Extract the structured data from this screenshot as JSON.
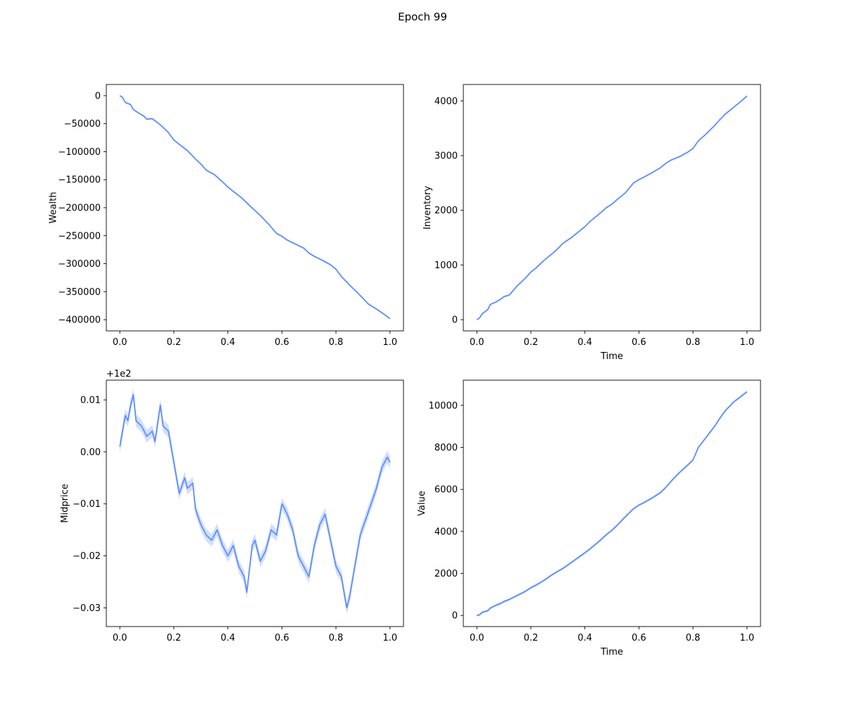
{
  "figure": {
    "title": "Epoch 99"
  },
  "colors": {
    "line": "#5e8ffb",
    "band": "#aec6f8",
    "axis": "#000000"
  },
  "chart_data": [
    {
      "type": "line",
      "id": "wealth",
      "xlabel": "",
      "ylabel": "Wealth",
      "offset_label": "",
      "xlim": [
        -0.05,
        1.05
      ],
      "ylim": [
        -420000,
        20000
      ],
      "xticks": [
        0.0,
        0.2,
        0.4,
        0.6,
        0.8,
        1.0
      ],
      "xtick_labels": [
        "0.0",
        "0.2",
        "0.4",
        "0.6",
        "0.8",
        "1.0"
      ],
      "yticks": [
        0,
        -50000,
        -100000,
        -150000,
        -200000,
        -250000,
        -300000,
        -350000,
        -400000
      ],
      "ytick_labels": [
        "0",
        "−50000",
        "−100000",
        "−150000",
        "−200000",
        "−250000",
        "−300000",
        "−350000",
        "−400000"
      ],
      "x": [
        0.0,
        0.01,
        0.02,
        0.04,
        0.05,
        0.07,
        0.09,
        0.1,
        0.12,
        0.15,
        0.18,
        0.2,
        0.22,
        0.25,
        0.28,
        0.3,
        0.32,
        0.35,
        0.38,
        0.4,
        0.42,
        0.45,
        0.48,
        0.5,
        0.52,
        0.55,
        0.58,
        0.6,
        0.62,
        0.65,
        0.68,
        0.7,
        0.72,
        0.75,
        0.78,
        0.8,
        0.82,
        0.85,
        0.88,
        0.9,
        0.92,
        0.95,
        0.98,
        1.0
      ],
      "y": [
        0,
        -3000,
        -12000,
        -16000,
        -25000,
        -31000,
        -37000,
        -42000,
        -41000,
        -52000,
        -66000,
        -79000,
        -87000,
        -98000,
        -113000,
        -122000,
        -133000,
        -141000,
        -154000,
        -163000,
        -171000,
        -182000,
        -196000,
        -205000,
        -214000,
        -229000,
        -246000,
        -251000,
        -258000,
        -265000,
        -272000,
        -281000,
        -287000,
        -294000,
        -302000,
        -310000,
        -323000,
        -338000,
        -352000,
        -362000,
        -372000,
        -381000,
        -391000,
        -398000
      ],
      "band_width": 1500
    },
    {
      "type": "line",
      "id": "inventory",
      "xlabel": "Time",
      "ylabel": "Inventory",
      "offset_label": "",
      "xlim": [
        -0.05,
        1.05
      ],
      "ylim": [
        -205,
        4300
      ],
      "xticks": [
        0.0,
        0.2,
        0.4,
        0.6,
        0.8,
        1.0
      ],
      "xtick_labels": [
        "0.0",
        "0.2",
        "0.4",
        "0.6",
        "0.8",
        "1.0"
      ],
      "yticks": [
        0,
        1000,
        2000,
        3000,
        4000
      ],
      "ytick_labels": [
        "0",
        "1000",
        "2000",
        "3000",
        "4000"
      ],
      "x": [
        0.0,
        0.01,
        0.02,
        0.04,
        0.05,
        0.07,
        0.09,
        0.1,
        0.12,
        0.15,
        0.18,
        0.2,
        0.22,
        0.25,
        0.28,
        0.3,
        0.32,
        0.35,
        0.38,
        0.4,
        0.42,
        0.45,
        0.48,
        0.5,
        0.52,
        0.55,
        0.58,
        0.6,
        0.62,
        0.65,
        0.68,
        0.7,
        0.72,
        0.75,
        0.78,
        0.8,
        0.82,
        0.85,
        0.88,
        0.9,
        0.92,
        0.95,
        0.98,
        1.0
      ],
      "y": [
        0,
        30,
        110,
        180,
        280,
        320,
        380,
        420,
        450,
        620,
        760,
        870,
        950,
        1090,
        1210,
        1300,
        1400,
        1500,
        1620,
        1700,
        1800,
        1920,
        2050,
        2110,
        2200,
        2320,
        2500,
        2560,
        2610,
        2690,
        2780,
        2860,
        2920,
        2980,
        3060,
        3130,
        3270,
        3400,
        3550,
        3660,
        3760,
        3880,
        4000,
        4090
      ],
      "band_width": 15
    },
    {
      "type": "line",
      "id": "midprice",
      "xlabel": "",
      "ylabel": "Midprice",
      "offset_label": "+1e2",
      "xlim": [
        -0.05,
        1.05
      ],
      "ylim": [
        -0.0336,
        0.0138
      ],
      "xticks": [
        0.0,
        0.2,
        0.4,
        0.6,
        0.8,
        1.0
      ],
      "xtick_labels": [
        "0.0",
        "0.2",
        "0.4",
        "0.6",
        "0.8",
        "1.0"
      ],
      "yticks": [
        0.01,
        0.0,
        -0.01,
        -0.02,
        -0.03
      ],
      "ytick_labels": [
        "0.01",
        "0.00",
        "−0.01",
        "−0.02",
        "−0.03"
      ],
      "x": [
        0.0,
        0.01,
        0.02,
        0.03,
        0.04,
        0.05,
        0.06,
        0.08,
        0.1,
        0.12,
        0.13,
        0.15,
        0.16,
        0.18,
        0.2,
        0.22,
        0.24,
        0.25,
        0.27,
        0.28,
        0.3,
        0.32,
        0.34,
        0.36,
        0.38,
        0.4,
        0.42,
        0.44,
        0.46,
        0.47,
        0.49,
        0.5,
        0.52,
        0.54,
        0.56,
        0.58,
        0.6,
        0.62,
        0.64,
        0.66,
        0.68,
        0.7,
        0.72,
        0.74,
        0.76,
        0.78,
        0.8,
        0.82,
        0.84,
        0.85,
        0.87,
        0.89,
        0.91,
        0.93,
        0.95,
        0.97,
        0.99,
        1.0
      ],
      "y": [
        0.001,
        0.004,
        0.007,
        0.006,
        0.009,
        0.011,
        0.006,
        0.005,
        0.003,
        0.004,
        0.002,
        0.009,
        0.005,
        0.004,
        -0.002,
        -0.008,
        -0.005,
        -0.007,
        -0.006,
        -0.011,
        -0.014,
        -0.016,
        -0.017,
        -0.015,
        -0.018,
        -0.02,
        -0.018,
        -0.022,
        -0.024,
        -0.027,
        -0.018,
        -0.017,
        -0.021,
        -0.019,
        -0.015,
        -0.016,
        -0.01,
        -0.012,
        -0.015,
        -0.02,
        -0.022,
        -0.024,
        -0.018,
        -0.014,
        -0.012,
        -0.017,
        -0.022,
        -0.024,
        -0.03,
        -0.028,
        -0.022,
        -0.016,
        -0.013,
        -0.01,
        -0.007,
        -0.003,
        -0.001,
        -0.002
      ],
      "band_width": 0.0012
    },
    {
      "type": "line",
      "id": "value",
      "xlabel": "Time",
      "ylabel": "Value",
      "offset_label": "",
      "xlim": [
        -0.05,
        1.05
      ],
      "ylim": [
        -530,
        11200
      ],
      "xticks": [
        0.0,
        0.2,
        0.4,
        0.6,
        0.8,
        1.0
      ],
      "xtick_labels": [
        "0.0",
        "0.2",
        "0.4",
        "0.6",
        "0.8",
        "1.0"
      ],
      "yticks": [
        0,
        2000,
        4000,
        6000,
        8000,
        10000
      ],
      "ytick_labels": [
        "0",
        "2000",
        "4000",
        "6000",
        "8000",
        "10000"
      ],
      "x": [
        0.0,
        0.01,
        0.02,
        0.04,
        0.05,
        0.07,
        0.09,
        0.1,
        0.12,
        0.15,
        0.18,
        0.2,
        0.22,
        0.25,
        0.28,
        0.3,
        0.32,
        0.35,
        0.38,
        0.4,
        0.42,
        0.45,
        0.48,
        0.5,
        0.52,
        0.55,
        0.58,
        0.6,
        0.62,
        0.65,
        0.68,
        0.7,
        0.72,
        0.75,
        0.78,
        0.8,
        0.82,
        0.85,
        0.88,
        0.9,
        0.92,
        0.95,
        0.98,
        1.0
      ],
      "y": [
        0,
        30,
        150,
        220,
        350,
        480,
        580,
        660,
        760,
        950,
        1150,
        1320,
        1450,
        1680,
        1950,
        2100,
        2250,
        2520,
        2800,
        2980,
        3180,
        3500,
        3850,
        4050,
        4300,
        4700,
        5080,
        5250,
        5380,
        5600,
        5850,
        6100,
        6400,
        6800,
        7150,
        7400,
        8000,
        8500,
        9000,
        9400,
        9750,
        10150,
        10450,
        10650
      ],
      "band_width": 60
    }
  ]
}
